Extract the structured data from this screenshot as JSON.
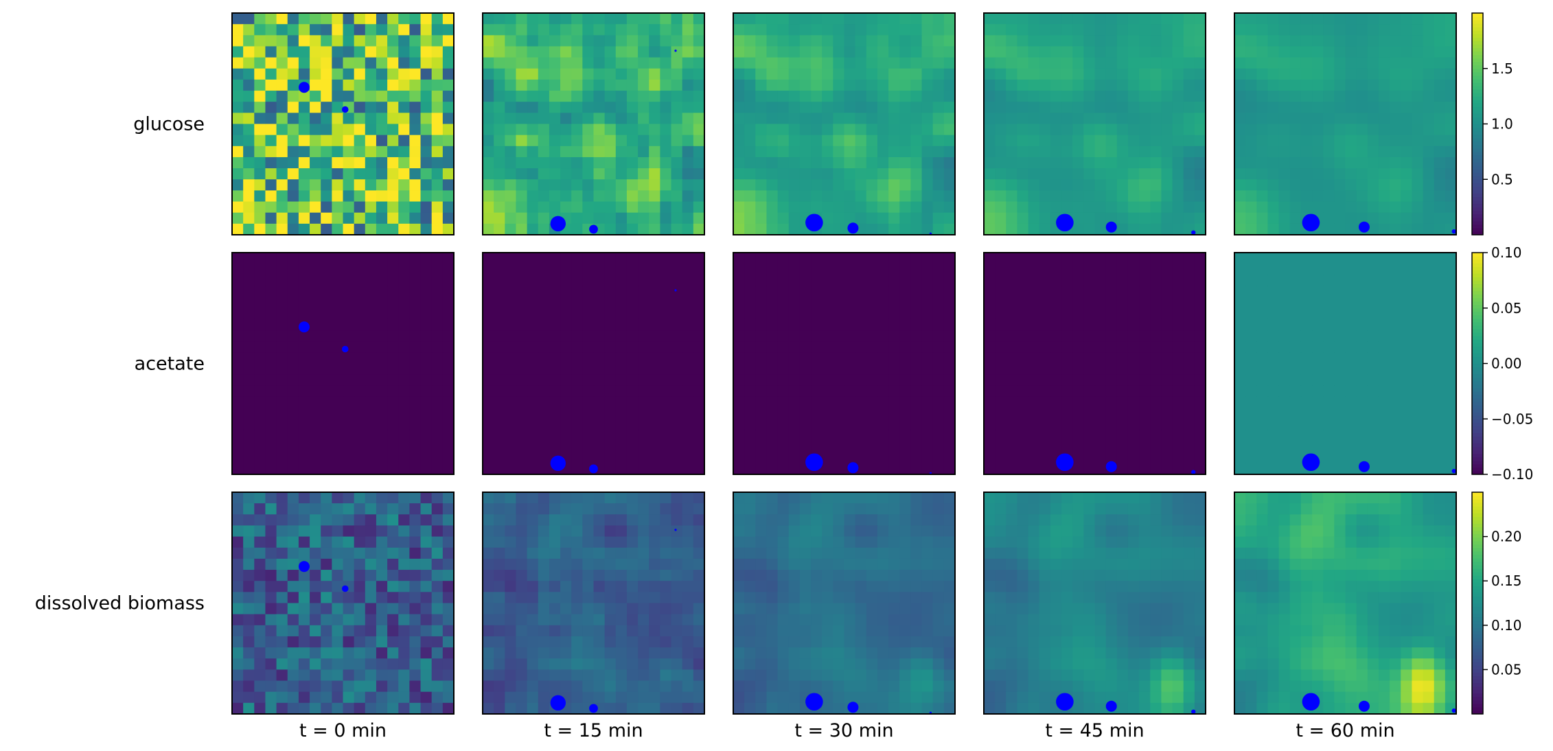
{
  "chart_data": {
    "type": "heatmap",
    "rows": [
      {
        "label": "glucose",
        "colorbar": {
          "min": 0.0,
          "max": 2.0,
          "ticks": [
            0.5,
            1.0,
            1.5
          ],
          "tick_labels": [
            "0.5",
            "1.0",
            "1.5"
          ]
        }
      },
      {
        "label": "acetate",
        "colorbar": {
          "min": -0.1,
          "max": 0.1,
          "ticks": [
            -0.1,
            -0.05,
            0.0,
            0.05,
            0.1
          ],
          "tick_labels": [
            "−0.10",
            "−0.05",
            "0.00",
            "0.05",
            "0.10"
          ]
        }
      },
      {
        "label": "dissolved biomass",
        "colorbar": {
          "min": 0.0,
          "max": 0.25,
          "ticks": [
            0.05,
            0.1,
            0.15,
            0.2
          ],
          "tick_labels": [
            "0.05",
            "0.10",
            "0.15",
            "0.20"
          ]
        }
      }
    ],
    "columns": [
      "t = 0 min",
      "t = 15 min",
      "t = 30 min",
      "t = 45 min",
      "t = 60 min"
    ],
    "grid_size": [
      20,
      20
    ],
    "colormap": "viridis",
    "acetate_uniform_value_by_column": [
      -0.1,
      -0.1,
      -0.1,
      -0.1,
      0.0
    ],
    "agents": [
      [
        {
          "x": 6.5,
          "y": 13.3,
          "size": 5
        },
        {
          "x": 10.2,
          "y": 11.3,
          "size": 3
        }
      ],
      [
        {
          "x": 6.8,
          "y": 1.0,
          "size": 7
        },
        {
          "x": 10.0,
          "y": 0.5,
          "size": 4
        },
        {
          "x": 17.4,
          "y": 16.6,
          "size": 1
        }
      ],
      [
        {
          "x": 7.3,
          "y": 1.1,
          "size": 8
        },
        {
          "x": 10.8,
          "y": 0.6,
          "size": 5
        },
        {
          "x": 17.8,
          "y": 0.1,
          "size": 1
        }
      ],
      [
        {
          "x": 7.3,
          "y": 1.1,
          "size": 8
        },
        {
          "x": 11.5,
          "y": 0.7,
          "size": 5
        },
        {
          "x": 18.9,
          "y": 0.2,
          "size": 2
        }
      ],
      [
        {
          "x": 6.9,
          "y": 1.1,
          "size": 8
        },
        {
          "x": 11.7,
          "y": 0.7,
          "size": 5
        },
        {
          "x": 19.8,
          "y": 0.3,
          "size": 2
        }
      ]
    ],
    "agent_color": "#0000ff",
    "axes_edge_color": "#000000"
  }
}
